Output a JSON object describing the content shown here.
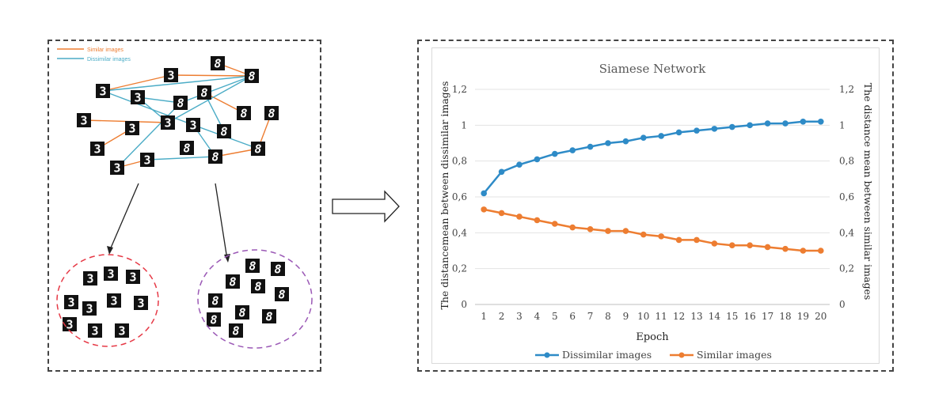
{
  "diagram": {
    "legend": [
      {
        "label": "Similar images",
        "color": "#ed7d31"
      },
      {
        "label": "Dissimilar images",
        "color": "#4bacc6"
      }
    ],
    "digits": {
      "three": "3",
      "eight": "8"
    },
    "cluster_colors": {
      "threes": "#e63946",
      "eights": "#9b59b6"
    }
  },
  "chart_data": {
    "type": "line",
    "title": "Siamese Network",
    "xlabel": "Epoch",
    "ylabel_left": "The distancemean between dissimilar images",
    "ylabel_right": "The distance mean between similar images",
    "x": [
      1,
      2,
      3,
      4,
      5,
      6,
      7,
      8,
      9,
      10,
      11,
      12,
      13,
      14,
      15,
      16,
      17,
      18,
      19,
      20
    ],
    "ylim": [
      0,
      1.2
    ],
    "yticks": [
      "0",
      "0,2",
      "0,4",
      "0,6",
      "0,8",
      "1",
      "1,2"
    ],
    "grid": true,
    "legend_position": "bottom",
    "series": [
      {
        "name": "Dissimilar images",
        "color": "#2e8bc7",
        "values": [
          0.62,
          0.74,
          0.78,
          0.81,
          0.84,
          0.86,
          0.88,
          0.9,
          0.91,
          0.93,
          0.94,
          0.96,
          0.97,
          0.98,
          0.99,
          1.0,
          1.01,
          1.01,
          1.02,
          1.02
        ]
      },
      {
        "name": "Similar images",
        "color": "#ed7d31",
        "values": [
          0.53,
          0.51,
          0.49,
          0.47,
          0.45,
          0.43,
          0.42,
          0.41,
          0.41,
          0.39,
          0.38,
          0.36,
          0.36,
          0.34,
          0.33,
          0.33,
          0.32,
          0.31,
          0.3,
          0.3
        ]
      }
    ]
  }
}
